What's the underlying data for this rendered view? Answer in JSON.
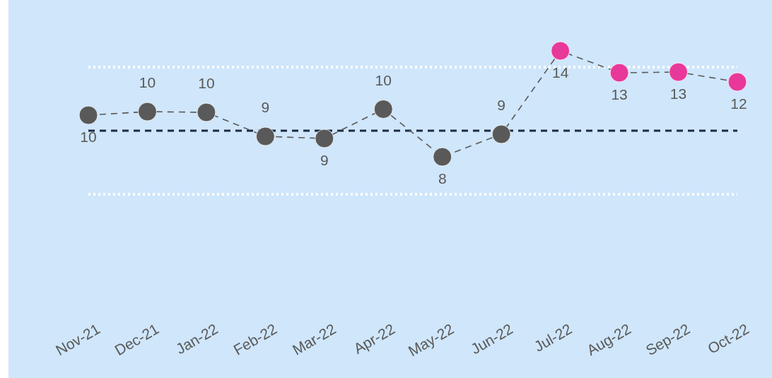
{
  "chart_data": {
    "type": "line",
    "categories": [
      "Nov-21",
      "Dec-21",
      "Jan-22",
      "Feb-22",
      "Mar-22",
      "Apr-22",
      "May-22",
      "Jun-22",
      "Jul-22",
      "Aug-22",
      "Sep-22",
      "Oct-22"
    ],
    "series": [
      {
        "color": "#595959",
        "colors": [
          "#595959",
          "#595959",
          "#595959",
          "#595959",
          "#595959",
          "#595959",
          "#595959",
          "#595959",
          "#e8399a",
          "#e8399a",
          "#e8399a",
          "#e8399a"
        ],
        "values": [
          10.13,
          10.33,
          10.29,
          8.93,
          8.81,
          10.47,
          7.77,
          9.05,
          13.77,
          12.53,
          12.57,
          12.01
        ],
        "value_labels": [
          "10",
          "10",
          "10",
          "9",
          "9",
          "10",
          "8",
          "9",
          "14",
          "13",
          "13",
          "12"
        ]
      }
    ],
    "tick_labels": "x",
    "marker": "circle",
    "line_style": "dashed",
    "ref_lines": [
      {
        "axis": "y",
        "value": 9.25,
        "color": "#1f2a44",
        "line_style": "dashed"
      },
      {
        "axis": "y",
        "value": 12.85,
        "color": "#ffffff",
        "line_style": "dotted"
      },
      {
        "axis": "y",
        "value": 5.65,
        "color": "#ffffff",
        "line_style": "dotted"
      }
    ]
  }
}
